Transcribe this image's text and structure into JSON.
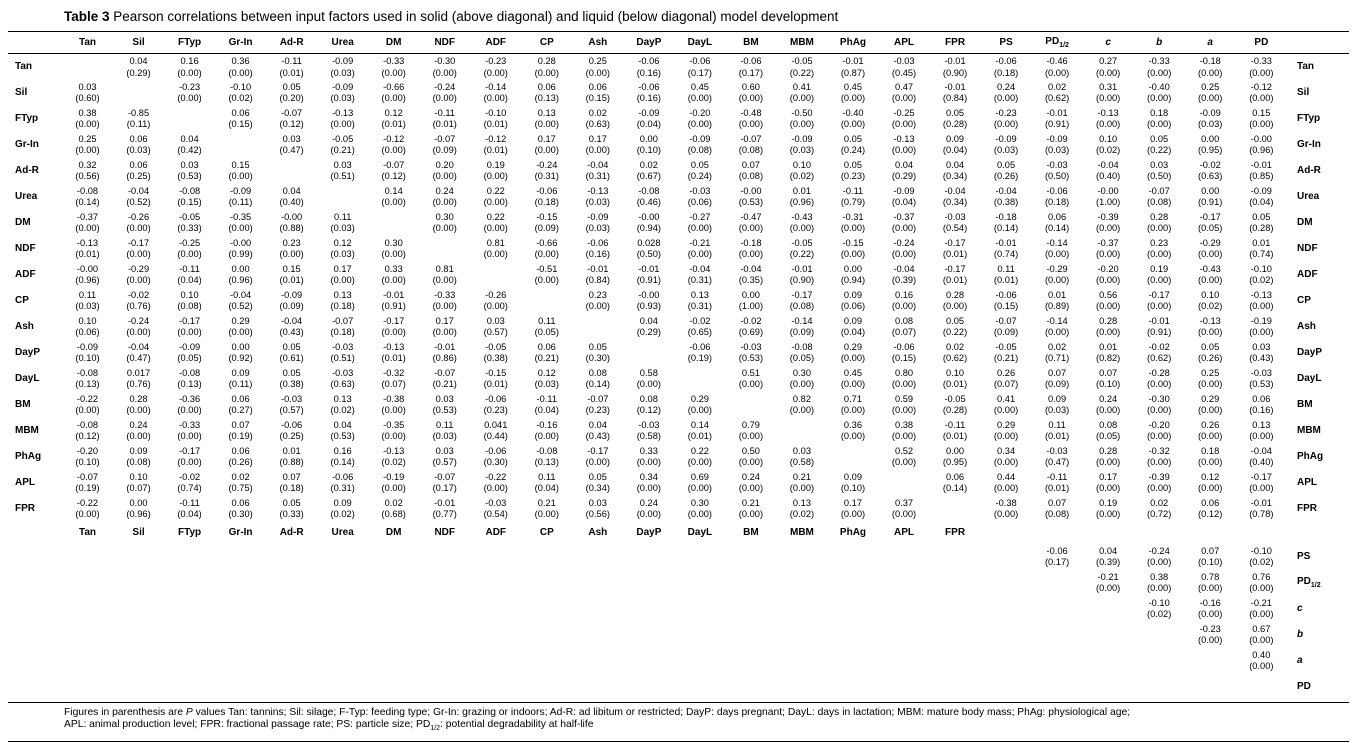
{
  "title": {
    "bold": "Table 3",
    "rest": "Pearson correlations between input factors used in solid (above diagonal) and liquid (below diagonal) model development"
  },
  "footnotes": [
    "Figures in parenthesis are P values Tan: tannins; Sil: silage; F-Typ: feeding type; Gr-In: grazing or indoors; Ad-R: ad libitum or restricted; DayP: days pregnant; DayL: days in lactation; MBM: mature body mass; PhAg: physiological age;",
    "APL: animal production level; FPR: fractional passage rate; PS: particle size; PD1/2: potential degradability at half-life"
  ],
  "table": {
    "columns": [
      "Tan",
      "Sil",
      "FTyp",
      "Gr-In",
      "Ad-R",
      "Urea",
      "DM",
      "NDF",
      "ADF",
      "CP",
      "Ash",
      "DayP",
      "DayL",
      "BM",
      "MBM",
      "PhAg",
      "APL",
      "FPR",
      "PS",
      "PD1/2",
      "c",
      "b",
      "a",
      "PD"
    ],
    "rows": [
      {
        "label": "Tan",
        "right_label": "Tan",
        "cells": [
          null,
          "0.04|(0.29)",
          "0.16|(0.00)",
          "0.36|(0.00)",
          "-0.11|(0.01)",
          "-0.09|(0.03)",
          "-0.33|(0.00)",
          "-0.30|(0.00)",
          "-0.23|(0.00)",
          "0.28|(0.00)",
          "0.25|(0.00)",
          "-0.06|(0.16)",
          "-0.06|(0.17)",
          "-0.06|(0.17)",
          "-0.05|(0.22)",
          "-0.01|(0.87)",
          "-0.03|(0.45)",
          "-0.01|(0.90)",
          "-0.06|(0.18)",
          "-0.46|(0.00)",
          "0.27|(0.00)",
          "-0.33|(0.00)",
          "-0.18|(0.00)",
          "-0.33|(0.00)"
        ]
      },
      {
        "label": "Sil",
        "right_label": "Sil",
        "cells": [
          "0.03|(0.60)",
          null,
          "-0.23|(0.00)",
          "-0.10|(0.02)",
          "0.05|(0.20)",
          "-0.09|(0.03)",
          "-0.66|(0.00)",
          "-0.24|(0.00)",
          "-0.14|(0.00)",
          "0.06|(0.13)",
          "0.06|(0.15)",
          "-0.06|(0.16)",
          "0.45|(0.00)",
          "0.60|(0.00)",
          "0.41|(0.00)",
          "0.45|(0.00)",
          "0.47|(0.00)",
          "-0.01|(0.84)",
          "0.24|(0.00)",
          "0.02|(0.62)",
          "0.31|(0.00)",
          "-0.40|(0.00)",
          "0.25|(0.00)",
          "-0.12|(0.00)"
        ]
      },
      {
        "label": "FTyp",
        "right_label": "FTyp",
        "cells": [
          "0.38|(0.00)",
          "-0.85|(0.11)",
          null,
          "0.06|(0.15)",
          "-0.07|(0.12)",
          "-0.13|(0.00)",
          "0.12|(0.01)",
          "-0.11|(0.01)",
          "-0.10|(0.01)",
          "0.13|(0.00)",
          "0.02|(0.63)",
          "-0.09|(0.04)",
          "-0.20|(0.00)",
          "-0.48|(0.00)",
          "-0.50|(0.00)",
          "-0.40|(0.00)",
          "-0.25|(0.00)",
          "0.05|(0.28)",
          "-0.23|(0.00)",
          "-0.01|(0.91)",
          "-0.13|(0.00)",
          "0.18|(0.00)",
          "-0.09|(0.03)",
          "0.15|(0.00)"
        ]
      },
      {
        "label": "Gr-In",
        "right_label": "Gr-In",
        "cells": [
          "0.25|(0.00)",
          "0.06|(0.03)",
          "0.04|(0.42)",
          null,
          "0.03|(0.47)",
          "-0.05|(0.21)",
          "-0.12|(0.00)",
          "-0.07|(0.09)",
          "-0.12|(0.01)",
          "0.17|(0.00)",
          "0.17|(0.00)",
          "0.00|(0.10)",
          "-0.09|(0.08)",
          "-0.07|(0.08)",
          "-0.09|(0.03)",
          "0.05|(0.24)",
          "-0.13|(0.00)",
          "0.09|(0.04)",
          "-0.09|(0.03)",
          "-0.09|(0.03)",
          "0.10|(0.02)",
          "0.05|(0.22)",
          "0.00|(0.95)",
          "-0.00|(0.96)"
        ]
      },
      {
        "label": "Ad-R",
        "right_label": "Ad-R",
        "cells": [
          "0.32|(0.56)",
          "0.06|(0.25)",
          "0.03|(0.53)",
          "0.15|(0.00)",
          null,
          "0.03|(0.51)",
          "-0.07|(0.12)",
          "0.20|(0.00)",
          "0.19|(0.00)",
          "-0.24|(0.31)",
          "-0.04|(0.31)",
          "0.02|(0.67)",
          "0.05|(0.24)",
          "0.07|(0.08)",
          "0.10|(0.02)",
          "0.05|(0.23)",
          "0.04|(0.29)",
          "0.04|(0.34)",
          "0.05|(0.26)",
          "-0.03|(0.50)",
          "-0.04|(0.40)",
          "0.03|(0.50)",
          "-0.02|(0.63)",
          "-0.01|(0.85)"
        ]
      },
      {
        "label": "Urea",
        "right_label": "Urea",
        "cells": [
          "-0.08|(0.14)",
          "-0.04|(0.52)",
          "-0.08|(0.15)",
          "-0.09|(0.11)",
          "0.04|(0.40)",
          null,
          "0.14|(0.00)",
          "0.24|(0.00)",
          "0.22|(0.00)",
          "-0.06|(0.18)",
          "-0.13|(0.03)",
          "-0.08|(0.46)",
          "-0.03|(0.06)",
          "-0.00|(0.53)",
          "0.01|(0.96)",
          "-0.11|(0.79)",
          "-0.09|(0.04)",
          "-0.04|(0.34)",
          "-0.04|(0.38)",
          "-0.06|(0.18)",
          "-0.00|(1.00)",
          "-0.07|(0.08)",
          "0.00|(0.91)",
          "-0.09|(0.04)"
        ]
      },
      {
        "label": "DM",
        "right_label": "DM",
        "cells": [
          "-0.37|(0.00)",
          "-0.26|(0.00)",
          "-0.05|(0.33)",
          "-0.35|(0.00)",
          "-0.00|(0.88)",
          "0.11|(0.03)",
          null,
          "0.30|(0.00)",
          "0.22|(0.00)",
          "-0.15|(0.09)",
          "-0.09|(0.03)",
          "-0.00|(0.94)",
          "-0.27|(0.00)",
          "-0.47|(0.00)",
          "-0.43|(0.00)",
          "-0.31|(0.00)",
          "-0.37|(0.00)",
          "-0.03|(0.54)",
          "-0.18|(0.14)",
          "0.06|(0.14)",
          "-0.39|(0.00)",
          "0.28|(0.00)",
          "-0.17|(0.05)",
          "0.05|(0.28)"
        ]
      },
      {
        "label": "NDF",
        "right_label": "NDF",
        "cells": [
          "-0.13|(0.01)",
          "-0.17|(0.00)",
          "-0.25|(0.00)",
          "-0.00|(0.99)",
          "0.23|(0.00)",
          "0.12|(0.03)",
          "0.30|(0.00)",
          null,
          "0.81|(0.00)",
          "-0.66|(0.00)",
          "-0.06|(0.16)",
          "0.028|(0.50)",
          "-0.21|(0.00)",
          "-0.18|(0.00)",
          "-0.05|(0.22)",
          "-0.15|(0.00)",
          "-0.24|(0.00)",
          "-0.17|(0.01)",
          "-0.01|(0.74)",
          "-0.14|(0.00)",
          "-0.37|(0.00)",
          "0.23|(0.00)",
          "-0.29|(0.00)",
          "0.01|(0.74)"
        ]
      },
      {
        "label": "ADF",
        "right_label": "ADF",
        "cells": [
          "-0.00|(0.96)",
          "-0.29|(0.00)",
          "-0.11|(0.04)",
          "0.00|(0.96)",
          "0.15|(0.01)",
          "0.17|(0.00)",
          "0.33|(0.00)",
          "0.81|(0.00)",
          null,
          "-0.51|(0.00)",
          "-0.01|(0.84)",
          "-0.01|(0.91)",
          "-0.04|(0.31)",
          "-0.04|(0.35)",
          "-0.01|(0.90)",
          "0.00|(0.94)",
          "-0.04|(0.39)",
          "-0.17|(0.01)",
          "0.11|(0.01)",
          "-0.29|(0.00)",
          "-0.20|(0.00)",
          "0.19|(0.00)",
          "-0.43|(0.00)",
          "-0.10|(0.02)"
        ]
      },
      {
        "label": "CP",
        "right_label": "CP",
        "cells": [
          "0.11|(0.03)",
          "-0.02|(0.76)",
          "0.10|(0.08)",
          "-0.04|(0.52)",
          "-0.09|(0.09)",
          "0.13|(0.18)",
          "-0.01|(0.91)",
          "-0.33|(0.00)",
          "-0.26|(0.00)",
          null,
          "0.23|(0.00)",
          "-0.00|(0.93)",
          "0.13|(0.31)",
          "0.00|(1.00)",
          "-0.17|(0.08)",
          "0.09|(0.06)",
          "0.16|(0.00)",
          "0.28|(0.00)",
          "-0.06|(0.15)",
          "0.01|(0.89)",
          "0.56|(0.00)",
          "-0.17|(0.00)",
          "0.10|(0.02)",
          "-0.13|(0.00)"
        ]
      },
      {
        "label": "Ash",
        "right_label": "Ash",
        "cells": [
          "0.10|(0.06)",
          "-0.24|(0.00)",
          "-0.17|(0.00)",
          "0.29|(0.00)",
          "-0.04|(0.43)",
          "-0.07|(0.18)",
          "-0.17|(0.00)",
          "0.17|(0.00)",
          "0.03|(0.57)",
          "0.11|(0.05)",
          null,
          "0.04|(0.29)",
          "-0.02|(0.65)",
          "-0.02|(0.69)",
          "-0.14|(0.09)",
          "0.09|(0.04)",
          "0.08|(0.07)",
          "0.05|(0.22)",
          "-0.07|(0.09)",
          "-0.14|(0.00)",
          "0.28|(0.00)",
          "-0.01|(0.91)",
          "-0.13|(0.00)",
          "-0.19|(0.00)"
        ]
      },
      {
        "label": "DayP",
        "right_label": "DayP",
        "cells": [
          "-0.09|(0.10)",
          "-0.04|(0.47)",
          "-0.09|(0.05)",
          "0.00|(0.92)",
          "0.05|(0.61)",
          "-0.03|(0.51)",
          "-0.13|(0.01)",
          "-0.01|(0.86)",
          "-0.05|(0.38)",
          "0.06|(0.21)",
          "0.05|(0.30)",
          null,
          "-0.06|(0.19)",
          "-0.03|(0.53)",
          "-0.08|(0.05)",
          "0.29|(0.00)",
          "-0.06|(0.15)",
          "0.02|(0.62)",
          "-0.05|(0.21)",
          "0.02|(0.71)",
          "0.01|(0.82)",
          "-0.02|(0.62)",
          "0.05|(0.26)",
          "0.03|(0.43)"
        ]
      },
      {
        "label": "DayL",
        "right_label": "DayL",
        "cells": [
          "-0.08|(0.13)",
          "0.017|(0.76)",
          "-0.08|(0.13)",
          "0.09|(0.11)",
          "0.05|(0.38)",
          "-0.03|(0.63)",
          "-0.32|(0.07)",
          "-0.07|(0.21)",
          "-0.15|(0.01)",
          "0.12|(0.03)",
          "0.08|(0.14)",
          "0.58|(0.00)",
          null,
          "0.51|(0.00)",
          "0.30|(0.00)",
          "0.45|(0.00)",
          "0.80|(0.00)",
          "0.10|(0.01)",
          "0.26|(0.07)",
          "0.07|(0.09)",
          "0.07|(0.10)",
          "-0.28|(0.00)",
          "0.25|(0.00)",
          "-0.03|(0.53)"
        ]
      },
      {
        "label": "BM",
        "right_label": "BM",
        "cells": [
          "-0.22|(0.00)",
          "0.28|(0.00)",
          "-0.36|(0.00)",
          "0.06|(0.27)",
          "-0.03|(0.57)",
          "0.13|(0.02)",
          "-0.38|(0.00)",
          "0.03|(0.53)",
          "-0.06|(0.23)",
          "-0.11|(0.04)",
          "-0.07|(0.23)",
          "0.08|(0.12)",
          "0.29|(0.00)",
          null,
          "0.82|(0.00)",
          "0.71|(0.00)",
          "0.59|(0.00)",
          "-0.05|(0.28)",
          "0.41|(0.00)",
          "0.09|(0.03)",
          "0.24|(0.00)",
          "-0.30|(0.00)",
          "0.29|(0.00)",
          "0.06|(0.16)"
        ]
      },
      {
        "label": "MBM",
        "right_label": "MBM",
        "cells": [
          "-0.08|(0.12)",
          "0.24|(0.00)",
          "-0.33|(0.00)",
          "0.07|(0.19)",
          "-0.06|(0.25)",
          "0.04|(0.53)",
          "-0.35|(0.00)",
          "0.11|(0.03)",
          "0.041|(0.44)",
          "-0.16|(0.00)",
          "0.04|(0.43)",
          "-0.03|(0.58)",
          "0.14|(0.01)",
          "0.79|(0.00)",
          null,
          "0.36|(0.00)",
          "0.38|(0.00)",
          "-0.11|(0.01)",
          "0.29|(0.00)",
          "0.11|(0.01)",
          "0.08|(0.05)",
          "-0.20|(0.00)",
          "0.26|(0.00)",
          "0.13|(0.00)"
        ]
      },
      {
        "label": "PhAg",
        "right_label": "PhAg",
        "cells": [
          "-0.20|(0.10)",
          "0.09|(0.08)",
          "-0.17|(0.00)",
          "0.06|(0.26)",
          "0.01|(0.88)",
          "0.16|(0.14)",
          "-0.13|(0.02)",
          "0.03|(0.57)",
          "-0.06|(0.30)",
          "-0.08|(0.13)",
          "-0.17|(0.00)",
          "0.33|(0.00)",
          "0.22|(0.00)",
          "0.50|(0.00)",
          "0.03|(0.58)",
          null,
          "0.52|(0.00)",
          "0.00|(0.95)",
          "0.34|(0.00)",
          "-0.03|(0.47)",
          "0.28|(0.00)",
          "-0.32|(0.00)",
          "0.18|(0.00)",
          "-0.04|(0.40)"
        ]
      },
      {
        "label": "APL",
        "right_label": "APL",
        "cells": [
          "-0.07|(0.19)",
          "0.10|(0.07)",
          "-0.02|(0.74)",
          "0.02|(0.75)",
          "0.07|(0.18)",
          "-0.06|(0.31)",
          "-0.19|(0.00)",
          "-0.07|(0.17)",
          "-0.22|(0.00)",
          "0.11|(0.04)",
          "0.05|(0.34)",
          "0.34|(0.00)",
          "0.69|(0.00)",
          "0.24|(0.00)",
          "0.21|(0.00)",
          "0.09|(0.10)",
          null,
          "0.06|(0.14)",
          "0.44|(0.00)",
          "-0.11|(0.01)",
          "0.17|(0.00)",
          "-0.39|(0.00)",
          "0.12|(0.00)",
          "-0.17|(0.00)"
        ]
      },
      {
        "label": "FPR",
        "right_label": "FPR",
        "cells": [
          "-0.22|(0.00)",
          "0.00|(0.96)",
          "-0.11|(0.04)",
          "0.06|(0.30)",
          "0.05|(0.33)",
          "0.09|(0.02)",
          "0.02|(0.68)",
          "-0.01|(0.77)",
          "-0.03|(0.54)",
          "0.21|(0.00)",
          "0.03|(0.56)",
          "0.24|(0.00)",
          "0.30|(0.00)",
          "0.21|(0.00)",
          "0.13|(0.02)",
          "0.17|(0.00)",
          "0.37|(0.00)",
          null,
          "-0.38|(0.00)",
          "0.07|(0.08)",
          "0.19|(0.00)",
          "0.02|(0.72)",
          "0.06|(0.12)",
          "-0.01|(0.78)"
        ]
      },
      {
        "header_repeat": true,
        "span": 18
      },
      {
        "label": "",
        "right_label": "PS",
        "cells": [
          null,
          null,
          null,
          null,
          null,
          null,
          null,
          null,
          null,
          null,
          null,
          null,
          null,
          null,
          null,
          null,
          null,
          null,
          null,
          "-0.06|(0.17)",
          "0.04|(0.39)",
          "-0.24|(0.00)",
          "0.07|(0.10)",
          "-0.10|(0.02)"
        ]
      },
      {
        "label": "",
        "right_label": "PD1/2",
        "cells": [
          null,
          null,
          null,
          null,
          null,
          null,
          null,
          null,
          null,
          null,
          null,
          null,
          null,
          null,
          null,
          null,
          null,
          null,
          null,
          null,
          "-0.21|(0.00)",
          "0.38|(0.00)",
          "0.78|(0.00)",
          "0.76|(0.00)"
        ]
      },
      {
        "label": "",
        "right_label": "c",
        "cells": [
          null,
          null,
          null,
          null,
          null,
          null,
          null,
          null,
          null,
          null,
          null,
          null,
          null,
          null,
          null,
          null,
          null,
          null,
          null,
          null,
          null,
          "-0.10|(0.02)",
          "-0.16|(0.00)",
          "-0.21|(0.00)"
        ]
      },
      {
        "label": "",
        "right_label": "b",
        "cells": [
          null,
          null,
          null,
          null,
          null,
          null,
          null,
          null,
          null,
          null,
          null,
          null,
          null,
          null,
          null,
          null,
          null,
          null,
          null,
          null,
          null,
          null,
          "-0.23|(0.00)",
          "0.67|(0.00)"
        ]
      },
      {
        "label": "",
        "right_label": "a",
        "cells": [
          null,
          null,
          null,
          null,
          null,
          null,
          null,
          null,
          null,
          null,
          null,
          null,
          null,
          null,
          null,
          null,
          null,
          null,
          null,
          null,
          null,
          null,
          null,
          "0.40|(0.00)"
        ]
      },
      {
        "label": "",
        "right_label": "PD",
        "cells": [
          null,
          null,
          null,
          null,
          null,
          null,
          null,
          null,
          null,
          null,
          null,
          null,
          null,
          null,
          null,
          null,
          null,
          null,
          null,
          null,
          null,
          null,
          null,
          null
        ]
      }
    ]
  }
}
